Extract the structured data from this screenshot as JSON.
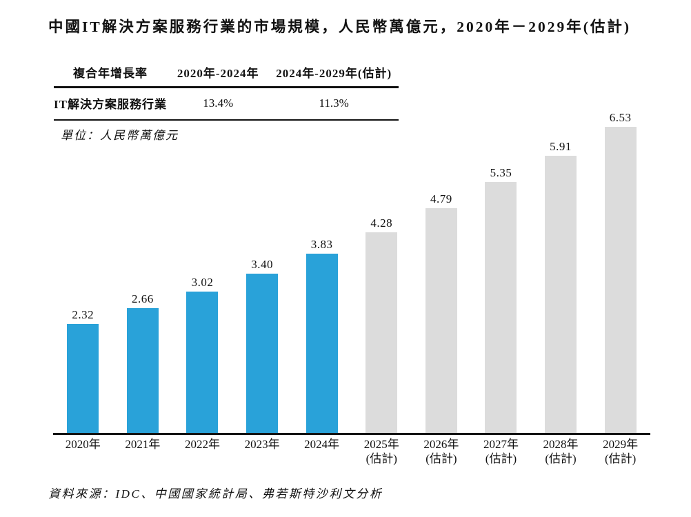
{
  "page": {
    "title": "中國IT解決方案服務行業的市場規模，人民幣萬億元，2020年－2029年(估計)",
    "unit_note": "單位：人民幣萬億元",
    "source_note": "資料來源：IDC、中國國家統計局、弗若斯特沙利文分析"
  },
  "cagr_table": {
    "headers": [
      "複合年增長率",
      "2020年-2024年",
      "2024年-2029年(估計)"
    ],
    "rows": [
      {
        "label": "IT解決方案服務行業",
        "values": [
          "13.4%",
          "11.3%"
        ]
      }
    ]
  },
  "chart_data": {
    "type": "bar",
    "title": "中國IT解決方案服務行業的市場規模，人民幣萬億元，2020年－2029年(估計)",
    "ylabel": "人民幣萬億元",
    "categories": [
      "2020年",
      "2021年",
      "2022年",
      "2023年",
      "2024年",
      "2025年",
      "2026年",
      "2027年",
      "2028年",
      "2029年"
    ],
    "category_sublabels": [
      "",
      "",
      "",
      "",
      "",
      "(估計)",
      "(估計)",
      "(估計)",
      "(估計)",
      "(估計)"
    ],
    "values": [
      2.32,
      2.66,
      3.02,
      3.4,
      3.83,
      4.28,
      4.79,
      5.35,
      5.91,
      6.53
    ],
    "value_labels": [
      "2.32",
      "2.66",
      "3.02",
      "3.40",
      "3.83",
      "4.28",
      "4.79",
      "5.35",
      "5.91",
      "6.53"
    ],
    "bar_colors": [
      "#29A2D9",
      "#29A2D9",
      "#29A2D9",
      "#29A2D9",
      "#29A2D9",
      "#DCDCDC",
      "#DCDCDC",
      "#DCDCDC",
      "#DCDCDC",
      "#DCDCDC"
    ],
    "colors": {
      "actual_bars": "#29A2D9",
      "estimated_bars": "#DCDCDC",
      "axis": "#141414"
    },
    "ylim": [
      0,
      7
    ],
    "grid": false,
    "y_axis_visible": false,
    "legend": "none"
  }
}
